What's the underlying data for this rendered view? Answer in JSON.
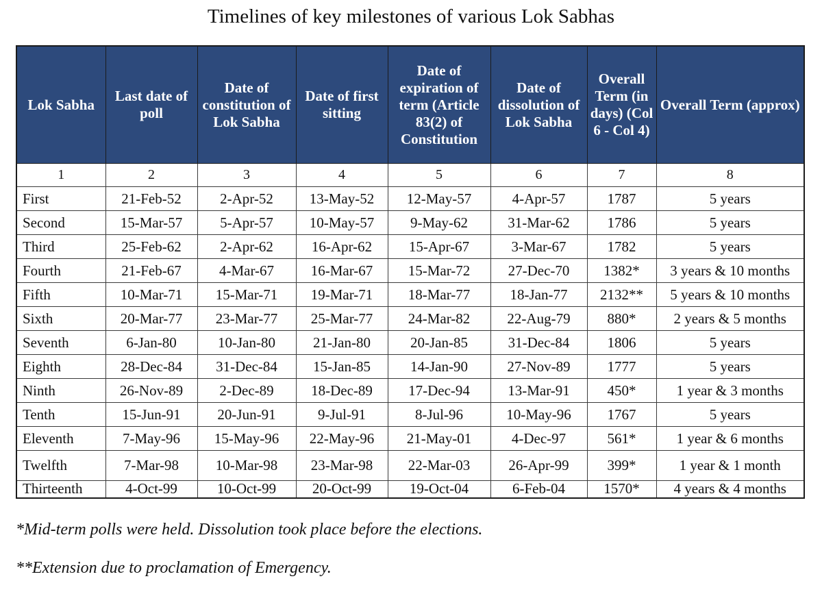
{
  "title": "Timelines of key milestones of various Lok Sabhas",
  "headers": [
    "Lok Sabha",
    "Last date of poll",
    "Date of constitution of Lok Sabha",
    "Date of first sitting",
    "Date of expiration of term (Article 83(2) of Constitution",
    "Date of dissolution of Lok Sabha",
    "Overall Term (in days) (Col 6 - Col 4)",
    "Overall Term (approx)"
  ],
  "column_numbers": [
    "1",
    "2",
    "3",
    "4",
    "5",
    "6",
    "7",
    "8"
  ],
  "rows": [
    [
      "First",
      "21-Feb-52",
      "2-Apr-52",
      "13-May-52",
      "12-May-57",
      "4-Apr-57",
      "1787",
      "5 years"
    ],
    [
      "Second",
      "15-Mar-57",
      "5-Apr-57",
      "10-May-57",
      "9-May-62",
      "31-Mar-62",
      "1786",
      "5 years"
    ],
    [
      "Third",
      "25-Feb-62",
      "2-Apr-62",
      "16-Apr-62",
      "15-Apr-67",
      "3-Mar-67",
      "1782",
      "5 years"
    ],
    [
      "Fourth",
      "21-Feb-67",
      "4-Mar-67",
      "16-Mar-67",
      "15-Mar-72",
      "27-Dec-70",
      "1382*",
      "3 years & 10 months"
    ],
    [
      "Fifth",
      "10-Mar-71",
      "15-Mar-71",
      "19-Mar-71",
      "18-Mar-77",
      "18-Jan-77",
      "2132**",
      "5 years & 10 months"
    ],
    [
      "Sixth",
      "20-Mar-77",
      "23-Mar-77",
      "25-Mar-77",
      "24-Mar-82",
      "22-Aug-79",
      "880*",
      "2 years & 5 months"
    ],
    [
      "Seventh",
      "6-Jan-80",
      "10-Jan-80",
      "21-Jan-80",
      "20-Jan-85",
      "31-Dec-84",
      "1806",
      "5 years"
    ],
    [
      "Eighth",
      "28-Dec-84",
      "31-Dec-84",
      "15-Jan-85",
      "14-Jan-90",
      "27-Nov-89",
      "1777",
      "5 years"
    ],
    [
      "Ninth",
      "26-Nov-89",
      "2-Dec-89",
      "18-Dec-89",
      "17-Dec-94",
      "13-Mar-91",
      "450*",
      "1 year & 3 months"
    ],
    [
      "Tenth",
      "15-Jun-91",
      "20-Jun-91",
      "9-Jul-91",
      "8-Jul-96",
      "10-May-96",
      "1767",
      "5 years"
    ],
    [
      "Eleventh",
      "7-May-96",
      "15-May-96",
      "22-May-96",
      "21-May-01",
      "4-Dec-97",
      "561*",
      "1 year & 6 months"
    ],
    [
      "Twelfth",
      "7-Mar-98",
      "10-Mar-98",
      "23-Mar-98",
      "22-Mar-03",
      "26-Apr-99",
      "399*",
      "1 year & 1 month"
    ],
    [
      "Thirteenth",
      "4-Oct-99",
      "10-Oct-99",
      "20-Oct-99",
      "19-Oct-04",
      "6-Feb-04",
      "1570*",
      "4 years & 4 months"
    ]
  ],
  "footnotes": {
    "single_star": "*Mid-term polls were held. Dissolution took place before the elections.",
    "double_star": "**Extension due to proclamation of Emergency."
  },
  "colors": {
    "header_background": "#2d4a7c",
    "header_text": "#ffffff"
  }
}
